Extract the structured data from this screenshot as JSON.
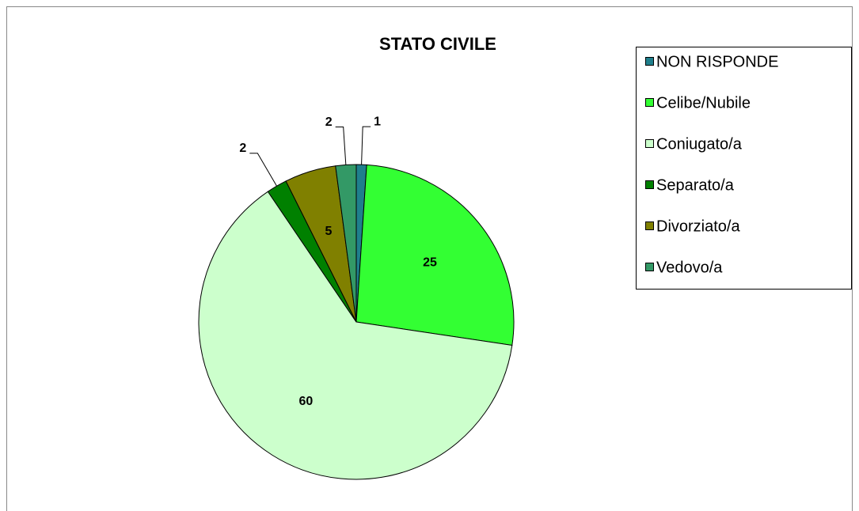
{
  "chart_data": {
    "type": "pie",
    "title": "STATO CIVILE",
    "categories": [
      "NON RISPONDE",
      "Celibe/Nubile",
      "Coniugato/a",
      "Separato/a",
      "Divorziato/a",
      "Vedovo/a"
    ],
    "values": [
      1,
      25,
      60,
      2,
      5,
      2
    ],
    "colors": [
      "#1f7f8c",
      "#33ff33",
      "#ccffcc",
      "#008000",
      "#808000",
      "#339966"
    ],
    "legend": "right"
  }
}
